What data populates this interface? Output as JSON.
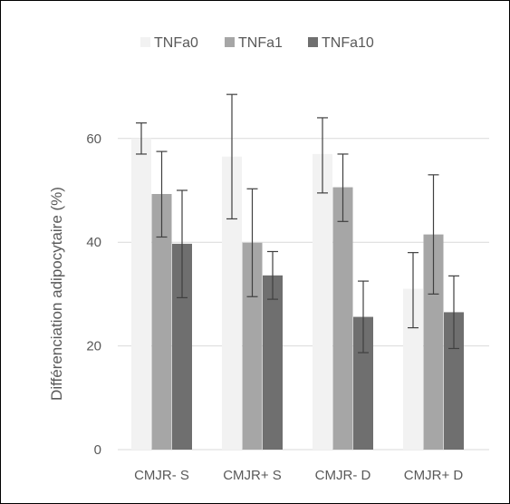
{
  "chart_data": {
    "type": "bar",
    "categories": [
      "CMJR- S",
      "CMJR+ S",
      "CMJR- D",
      "CMJR+ D"
    ],
    "series": [
      {
        "name": "TNFa0",
        "color": "#f2f2f2",
        "values": [
          60,
          56.5,
          57,
          31
        ],
        "err_low": [
          57,
          44.5,
          49.5,
          23.5
        ],
        "err_high": [
          63,
          68.5,
          64,
          38
        ]
      },
      {
        "name": "TNFa1",
        "color": "#a6a6a6",
        "values": [
          49.3,
          39.9,
          50.6,
          41.5
        ],
        "err_low": [
          41,
          29.5,
          44,
          30
        ],
        "err_high": [
          57.5,
          50.3,
          57,
          53
        ]
      },
      {
        "name": "TNFa10",
        "color": "#6f6f6f",
        "values": [
          39.7,
          33.6,
          25.6,
          26.5
        ],
        "err_low": [
          29.3,
          29,
          18.7,
          19.5
        ],
        "err_high": [
          50,
          38.2,
          32.5,
          33.5
        ]
      }
    ],
    "ylabel": "Différenciation adipocytaire (%)",
    "xlabel": "",
    "ylim": [
      0,
      70
    ],
    "yticks": [
      0,
      20,
      40,
      60
    ],
    "grid": true,
    "legend": "top"
  }
}
